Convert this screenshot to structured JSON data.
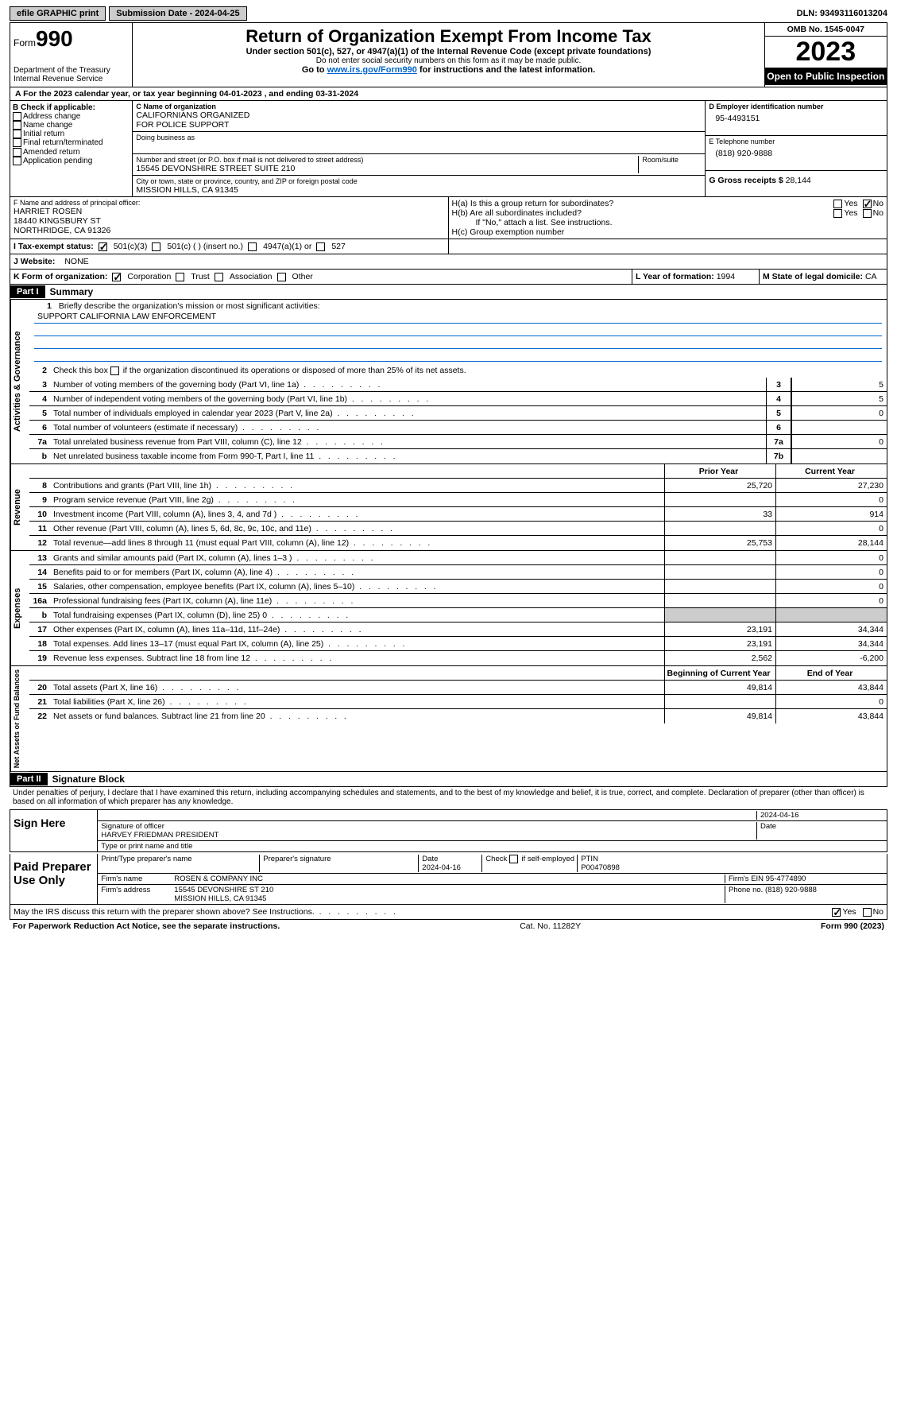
{
  "top": {
    "btn1": "efile GRAPHIC print",
    "btn2": "Submission Date - 2024-04-25",
    "dln": "DLN: 93493116013204"
  },
  "header": {
    "form_label": "Form",
    "form_num": "990",
    "dept": "Department of the Treasury\nInternal Revenue Service",
    "title": "Return of Organization Exempt From Income Tax",
    "sub1": "Under section 501(c), 527, or 4947(a)(1) of the Internal Revenue Code (except private foundations)",
    "sub2": "Do not enter social security numbers on this form as it may be made public.",
    "sub3_pre": "Go to ",
    "sub3_link": "www.irs.gov/Form990",
    "sub3_post": " for instructions and the latest information.",
    "omb": "OMB No. 1545-0047",
    "year": "2023",
    "open": "Open to Public Inspection"
  },
  "period": {
    "text": "A For the 2023 calendar year, or tax year beginning 04-01-2023   , and ending 03-31-2024"
  },
  "boxB": {
    "label": "B Check if applicable:",
    "items": [
      "Address change",
      "Name change",
      "Initial return",
      "Final return/terminated",
      "Amended return",
      "Application pending"
    ]
  },
  "boxC": {
    "name_label": "C Name of organization",
    "name": "CALIFORNIANS ORGANIZED\nFOR POLICE SUPPORT",
    "dba_label": "Doing business as",
    "addr_label": "Number and street (or P.O. box if mail is not delivered to street address)",
    "room_label": "Room/suite",
    "addr": "15545 DEVONSHIRE STREET SUITE 210",
    "city_label": "City or town, state or province, country, and ZIP or foreign postal code",
    "city": "MISSION HILLS, CA  91345"
  },
  "boxD": {
    "label": "D Employer identification number",
    "value": "95-4493151"
  },
  "boxE": {
    "label": "E Telephone number",
    "value": "(818) 920-9888"
  },
  "boxG": {
    "label": "G Gross receipts $",
    "value": "28,144"
  },
  "boxF": {
    "label": "F  Name and address of principal officer:",
    "name": "HARRIET ROSEN",
    "addr1": "18440 KINGSBURY ST",
    "addr2": "NORTHRIDGE, CA  91326"
  },
  "boxH": {
    "a": "H(a)  Is this a group return for subordinates?",
    "b": "H(b)  Are all subordinates included?",
    "b_note": "If \"No,\" attach a list. See instructions.",
    "c": "H(c)  Group exemption number",
    "yes": "Yes",
    "no": "No"
  },
  "taxexempt": {
    "label": "I   Tax-exempt status:",
    "c3": "501(c)(3)",
    "c": "501(c) (  ) (insert no.)",
    "a1": "4947(a)(1) or",
    "527": "527"
  },
  "website": {
    "label": "J   Website:",
    "value": "NONE"
  },
  "boxK": {
    "label": "K Form of organization:",
    "corp": "Corporation",
    "trust": "Trust",
    "assoc": "Association",
    "other": "Other"
  },
  "boxL": {
    "label": "L Year of formation:",
    "value": "1994"
  },
  "boxM": {
    "label": "M State of legal domicile:",
    "value": "CA"
  },
  "part1": {
    "label": "Part I",
    "title": "Summary",
    "l1_label": "Briefly describe the organization's mission or most significant activities:",
    "l1_value": "SUPPORT CALIFORNIA LAW ENFORCEMENT",
    "l2": "Check this box      if the organization discontinued its operations or disposed of more than 25% of its net assets.",
    "lines_gov": [
      {
        "n": "3",
        "t": "Number of voting members of the governing body (Part VI, line 1a)",
        "box": "3",
        "v": "5"
      },
      {
        "n": "4",
        "t": "Number of independent voting members of the governing body (Part VI, line 1b)",
        "box": "4",
        "v": "5"
      },
      {
        "n": "5",
        "t": "Total number of individuals employed in calendar year 2023 (Part V, line 2a)",
        "box": "5",
        "v": "0"
      },
      {
        "n": "6",
        "t": "Total number of volunteers (estimate if necessary)",
        "box": "6",
        "v": ""
      },
      {
        "n": "7a",
        "t": "Total unrelated business revenue from Part VIII, column (C), line 12",
        "box": "7a",
        "v": "0"
      },
      {
        "n": "b",
        "t": "Net unrelated business taxable income from Form 990-T, Part I, line 11",
        "box": "7b",
        "v": ""
      }
    ],
    "col_prior": "Prior Year",
    "col_current": "Current Year",
    "lines_rev": [
      {
        "n": "8",
        "t": "Contributions and grants (Part VIII, line 1h)",
        "p": "25,720",
        "c": "27,230"
      },
      {
        "n": "9",
        "t": "Program service revenue (Part VIII, line 2g)",
        "p": "",
        "c": "0"
      },
      {
        "n": "10",
        "t": "Investment income (Part VIII, column (A), lines 3, 4, and 7d )",
        "p": "33",
        "c": "914"
      },
      {
        "n": "11",
        "t": "Other revenue (Part VIII, column (A), lines 5, 6d, 8c, 9c, 10c, and 11e)",
        "p": "",
        "c": "0"
      },
      {
        "n": "12",
        "t": "Total revenue—add lines 8 through 11 (must equal Part VIII, column (A), line 12)",
        "p": "25,753",
        "c": "28,144"
      }
    ],
    "lines_exp": [
      {
        "n": "13",
        "t": "Grants and similar amounts paid (Part IX, column (A), lines 1–3 )",
        "p": "",
        "c": "0"
      },
      {
        "n": "14",
        "t": "Benefits paid to or for members (Part IX, column (A), line 4)",
        "p": "",
        "c": "0"
      },
      {
        "n": "15",
        "t": "Salaries, other compensation, employee benefits (Part IX, column (A), lines 5–10)",
        "p": "",
        "c": "0"
      },
      {
        "n": "16a",
        "t": "Professional fundraising fees (Part IX, column (A), line 11e)",
        "p": "",
        "c": "0"
      },
      {
        "n": "b",
        "t": "Total fundraising expenses (Part IX, column (D), line 25) 0",
        "p": "SHADE",
        "c": "SHADE"
      },
      {
        "n": "17",
        "t": "Other expenses (Part IX, column (A), lines 11a–11d, 11f–24e)",
        "p": "23,191",
        "c": "34,344"
      },
      {
        "n": "18",
        "t": "Total expenses. Add lines 13–17 (must equal Part IX, column (A), line 25)",
        "p": "23,191",
        "c": "34,344"
      },
      {
        "n": "19",
        "t": "Revenue less expenses. Subtract line 18 from line 12",
        "p": "2,562",
        "c": "-6,200"
      }
    ],
    "col_begin": "Beginning of Current Year",
    "col_end": "End of Year",
    "lines_net": [
      {
        "n": "20",
        "t": "Total assets (Part X, line 16)",
        "p": "49,814",
        "c": "43,844"
      },
      {
        "n": "21",
        "t": "Total liabilities (Part X, line 26)",
        "p": "",
        "c": "0"
      },
      {
        "n": "22",
        "t": "Net assets or fund balances. Subtract line 21 from line 20",
        "p": "49,814",
        "c": "43,844"
      }
    ],
    "vert_gov": "Activities & Governance",
    "vert_rev": "Revenue",
    "vert_exp": "Expenses",
    "vert_net": "Net Assets or Fund Balances"
  },
  "part2": {
    "label": "Part II",
    "title": "Signature Block",
    "decl": "Under penalties of perjury, I declare that I have examined this return, including accompanying schedules and statements, and to the best of my knowledge and belief, it is true, correct, and complete. Declaration of preparer (other than officer) is based on all information of which preparer has any knowledge."
  },
  "sign": {
    "label": "Sign Here",
    "sig_officer": "Signature of officer",
    "date_label": "Date",
    "date": "2024-04-16",
    "officer": "HARVEY FRIEDMAN  PRESIDENT",
    "type_label": "Type or print name and title"
  },
  "preparer": {
    "label": "Paid Preparer Use Only",
    "name_label": "Print/Type preparer's name",
    "sig_label": "Preparer's signature",
    "date_label": "Date",
    "date": "2024-04-16",
    "check_label": "Check       if self-employed",
    "ptin_label": "PTIN",
    "ptin": "P00470898",
    "firm_label": "Firm's name",
    "firm": "ROSEN & COMPANY INC",
    "ein_label": "Firm's EIN",
    "ein": "95-4774890",
    "addr_label": "Firm's address",
    "addr1": "15545 DEVONSHIRE ST 210",
    "addr2": "MISSION HILLS, CA  91345",
    "phone_label": "Phone no.",
    "phone": "(818) 920-9888"
  },
  "discuss": {
    "text": "May the IRS discuss this return with the preparer shown above? See Instructions.",
    "yes": "Yes",
    "no": "No"
  },
  "footer": {
    "left": "For Paperwork Reduction Act Notice, see the separate instructions.",
    "mid": "Cat. No. 11282Y",
    "right_pre": "Form ",
    "right_form": "990",
    "right_post": " (2023)"
  }
}
